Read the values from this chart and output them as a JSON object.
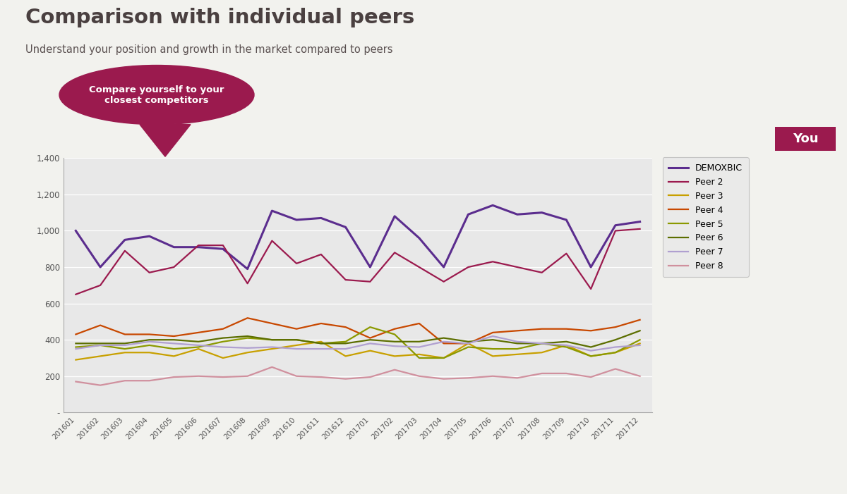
{
  "title": "Comparison with individual peers",
  "subtitle": "Understand your position and growth in the market compared to peers",
  "callout_text": "Compare yourself to your\nclosest competitors",
  "x_labels": [
    "201601",
    "201602",
    "201603",
    "201604",
    "201605",
    "201606",
    "201607",
    "201608",
    "201609",
    "201610",
    "201611",
    "201612",
    "201701",
    "201702",
    "201703",
    "201704",
    "201705",
    "201706",
    "201707",
    "201708",
    "201709",
    "201710",
    "201711",
    "201712"
  ],
  "series": {
    "DEMOXBIC": [
      1000,
      800,
      950,
      970,
      910,
      910,
      900,
      790,
      1110,
      1060,
      1070,
      1020,
      800,
      1080,
      960,
      800,
      1090,
      1140,
      1090,
      1100,
      1060,
      800,
      1030,
      1050
    ],
    "Peer 2": [
      650,
      700,
      890,
      770,
      800,
      920,
      920,
      710,
      945,
      820,
      870,
      730,
      720,
      880,
      800,
      720,
      800,
      830,
      800,
      770,
      875,
      680,
      1000,
      1010
    ],
    "Peer 3": [
      290,
      310,
      330,
      330,
      310,
      350,
      300,
      330,
      350,
      370,
      390,
      310,
      340,
      310,
      320,
      300,
      380,
      310,
      320,
      330,
      370,
      310,
      330,
      380
    ],
    "Peer 4": [
      430,
      480,
      430,
      430,
      420,
      440,
      460,
      520,
      490,
      460,
      490,
      470,
      410,
      460,
      490,
      380,
      380,
      440,
      450,
      460,
      460,
      450,
      470,
      510
    ],
    "Peer 5": [
      360,
      370,
      350,
      370,
      350,
      360,
      390,
      410,
      400,
      400,
      380,
      390,
      470,
      430,
      300,
      300,
      360,
      350,
      350,
      380,
      360,
      310,
      330,
      400
    ],
    "Peer 6": [
      380,
      380,
      380,
      400,
      400,
      390,
      410,
      420,
      400,
      400,
      380,
      380,
      400,
      390,
      390,
      410,
      390,
      400,
      380,
      380,
      390,
      360,
      400,
      450
    ],
    "Peer 7": [
      350,
      370,
      370,
      390,
      380,
      370,
      360,
      355,
      360,
      350,
      350,
      350,
      380,
      365,
      360,
      390,
      380,
      420,
      390,
      380,
      370,
      340,
      360,
      370
    ],
    "Peer 8": [
      170,
      150,
      175,
      175,
      195,
      200,
      195,
      200,
      250,
      200,
      195,
      185,
      195,
      235,
      200,
      185,
      190,
      200,
      190,
      215,
      215,
      195,
      240,
      200
    ]
  },
  "colors": {
    "DEMOXBIC": "#5b2d8e",
    "Peer 2": "#9b1a4e",
    "Peer 3": "#c8a000",
    "Peer 4": "#c84800",
    "Peer 5": "#8b9900",
    "Peer 6": "#5c6e00",
    "Peer 7": "#b0a0d0",
    "Peer 8": "#d0909e"
  },
  "fig_bg": "#f2f2ee",
  "chart_bg": "#e8e8e8",
  "title_color": "#4a4040",
  "subtitle_color": "#5a5050",
  "callout_bg": "#9b1a4e",
  "callout_text_color": "#ffffff",
  "you_bg": "#9b1a4e",
  "you_text_color": "#ffffff",
  "ylim": [
    0,
    1400
  ],
  "yticks": [
    0,
    200,
    400,
    600,
    800,
    1000,
    1200,
    1400
  ],
  "ytick_labels": [
    "-",
    "200",
    "400",
    "600",
    "800",
    "1,000",
    "1,200",
    "1,400"
  ]
}
